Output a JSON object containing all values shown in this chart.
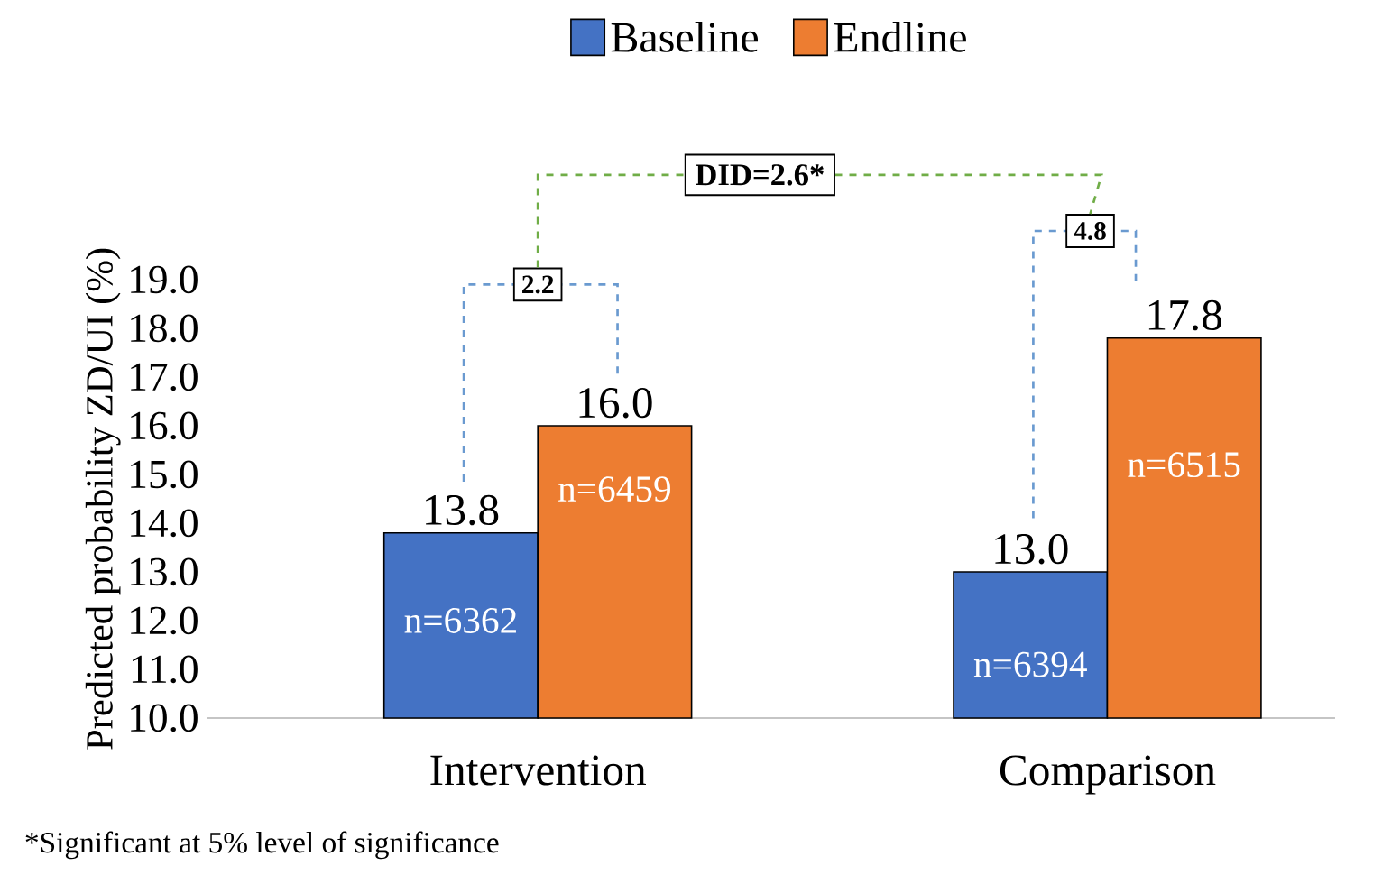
{
  "chart_data": {
    "type": "bar",
    "ylabel": "Predicted probability ZD/UI (%)",
    "categories": [
      "Intervention",
      "Comparison"
    ],
    "series": [
      {
        "name": "Baseline",
        "color": "#4472c4",
        "values": [
          13.8,
          13.0
        ],
        "value_labels": [
          "13.8",
          "13.0"
        ]
      },
      {
        "name": "Endline",
        "color": "#ed7d31",
        "values": [
          16.0,
          17.8
        ],
        "value_labels": [
          "16.0",
          "17.8"
        ]
      }
    ],
    "ylim": [
      10,
      19
    ],
    "yticks": [
      {
        "value": 10,
        "label": "10.0"
      },
      {
        "value": 11,
        "label": "11.0"
      },
      {
        "value": 12,
        "label": "12.0"
      },
      {
        "value": 13,
        "label": "13.0"
      },
      {
        "value": 14,
        "label": "14.0"
      },
      {
        "value": 15,
        "label": "15.0"
      },
      {
        "value": 16,
        "label": "16.0"
      },
      {
        "value": 17,
        "label": "17.0"
      },
      {
        "value": 18,
        "label": "18.0"
      },
      {
        "value": 19,
        "label": "19.0"
      }
    ],
    "legend": "top",
    "annotations": [
      {
        "text": "n=6362",
        "x": "Intervention",
        "y": 12.0
      },
      {
        "text": "n=6459",
        "x": "Intervention",
        "y": 14.7
      },
      {
        "text": "n=6394",
        "x": "Comparison",
        "y": 11.1
      },
      {
        "text": "n=6515",
        "x": "Comparison",
        "y": 15.2
      },
      "2.2",
      "4.8",
      "DID=2.6*",
      "*Significant  at 5% level of significance"
    ]
  }
}
